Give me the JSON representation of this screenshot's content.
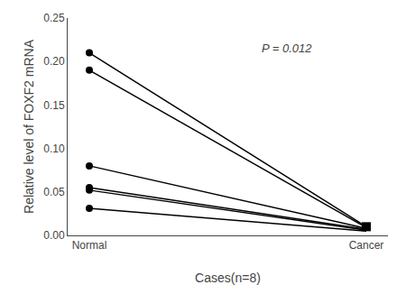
{
  "chart_data": {
    "type": "line",
    "categories": [
      "Normal",
      "Cancer"
    ],
    "xlabel": "Cases(n=8)",
    "ylabel": "Relative level of FOXF2 mRNA",
    "annotation": "P = 0.012",
    "color": "#000000",
    "series": [
      {
        "type": "line",
        "marker": "circle",
        "values": [
          0.21,
          0.01
        ]
      },
      {
        "type": "line",
        "marker": "circle",
        "values": [
          0.19,
          0.009
        ]
      },
      {
        "type": "line",
        "marker": "circle",
        "values": [
          0.08,
          0.008
        ]
      },
      {
        "type": "line",
        "marker": "circle",
        "values": [
          0.055,
          0.007
        ]
      },
      {
        "type": "line",
        "marker": "circle",
        "values": [
          0.052,
          0.006
        ]
      },
      {
        "type": "line",
        "marker": "circle",
        "values": [
          0.031,
          0.005
        ]
      },
      {
        "type": "scatter",
        "marker": "square",
        "values": [
          null,
          0.01
        ]
      }
    ],
    "ylim": [
      0,
      0.25
    ],
    "yticks": [
      {
        "value": 0,
        "label": "0.00"
      },
      0.05,
      {
        "value": 0.1,
        "label": "0.10"
      },
      0.15,
      {
        "value": 0.2,
        "label": "0.20"
      },
      0.25
    ],
    "grid": false
  }
}
